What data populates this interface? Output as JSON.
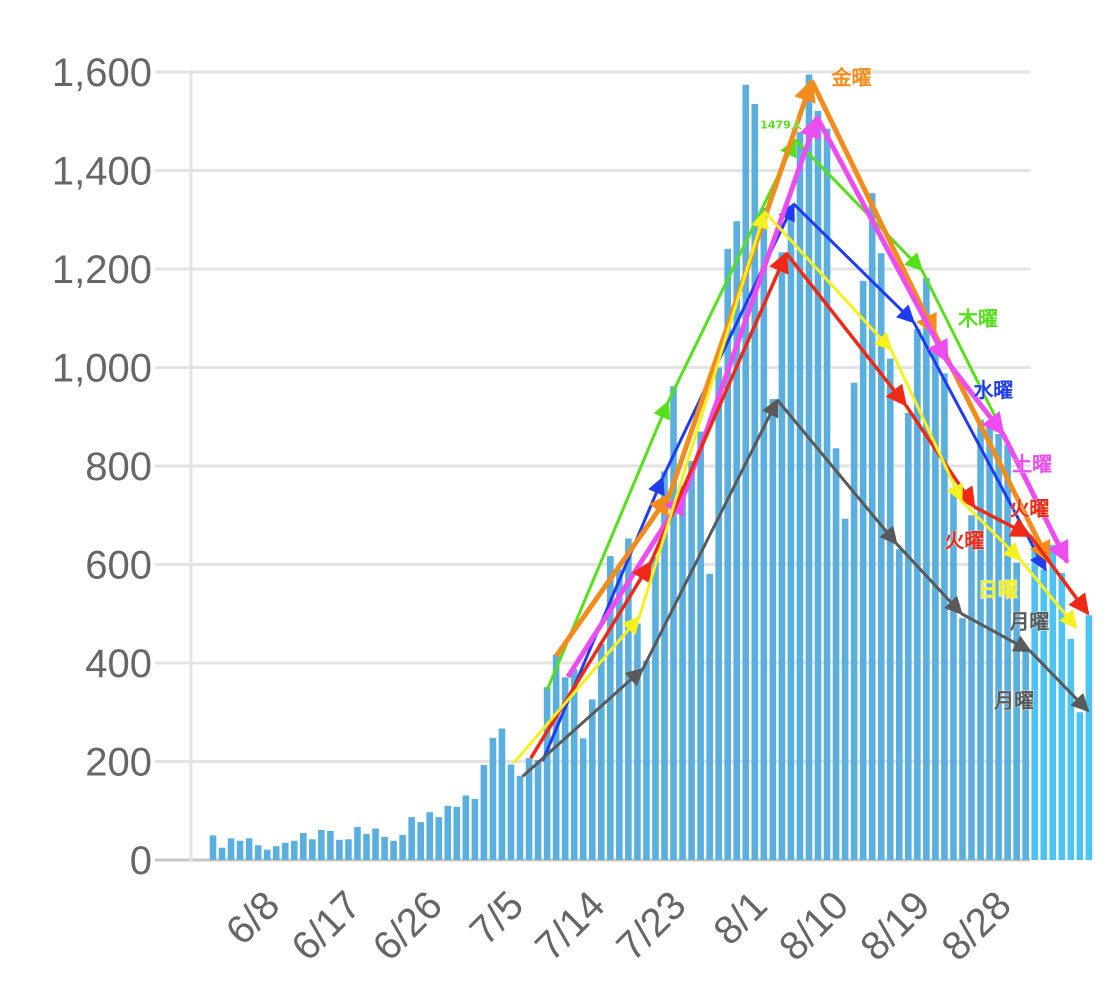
{
  "chart_data": {
    "type": "bar",
    "title": "",
    "xlabel": "",
    "ylabel": "",
    "ylim": [
      0,
      1600
    ],
    "grid": true,
    "start_date": "6/5",
    "y_ticks": [
      "0",
      "200",
      "400",
      "600",
      "800",
      "1,000",
      "1,200",
      "1,400",
      "1,600"
    ],
    "y_tick_values": [
      0,
      200,
      400,
      600,
      800,
      1000,
      1200,
      1400,
      1600
    ],
    "x_ticks": [
      {
        "day": 3,
        "label": "6/8"
      },
      {
        "day": 12,
        "label": "6/17"
      },
      {
        "day": 21,
        "label": "6/26"
      },
      {
        "day": 30,
        "label": "7/5"
      },
      {
        "day": 39,
        "label": "7/14"
      },
      {
        "day": 48,
        "label": "7/23"
      },
      {
        "day": 57,
        "label": "8/1"
      },
      {
        "day": 66,
        "label": "8/10"
      },
      {
        "day": 75,
        "label": "8/19"
      },
      {
        "day": 84,
        "label": "8/28"
      }
    ],
    "values": [
      50,
      25,
      44,
      39,
      44,
      30,
      21,
      28,
      35,
      39,
      55,
      42,
      61,
      59,
      41,
      42,
      67,
      53,
      64,
      47,
      39,
      51,
      87,
      77,
      97,
      87,
      110,
      108,
      131,
      124,
      193,
      248,
      267,
      194,
      171,
      207,
      203,
      351,
      417,
      371,
      388,
      247,
      326,
      439,
      617,
      590,
      653,
      480,
      405,
      615,
      789,
      962,
      760,
      810,
      870,
      581,
      1000,
      1241,
      1297,
      1574,
      1535,
      1324,
      936,
      1234,
      1329,
      1478,
      1595,
      1521,
      1485,
      836,
      693,
      969,
      1176,
      1354,
      1232,
      1018,
      631,
      908,
      1078,
      1182,
      1035,
      988,
      756,
      491,
      700,
      894,
      879,
      865,
      843,
      604,
      427,
      640,
      590,
      640,
      583,
      449,
      300,
      497
    ],
    "bar_color": "#5aafdf",
    "bar_color_recent": "#4cc3f2",
    "recent_from_day": 91,
    "weekday_trends": [
      {
        "name": "木曜",
        "color": "#55e01a",
        "width": 3,
        "points": [
          [
            37.0,
            345
          ],
          [
            50.4,
            930
          ],
          [
            64.5,
            1462
          ],
          [
            78.5,
            1198
          ],
          [
            92.4,
            688
          ]
        ]
      },
      {
        "name": "水曜",
        "color": "#1f3cf0",
        "width": 3,
        "points": [
          [
            36.5,
            201
          ],
          [
            49.8,
            776
          ],
          [
            64.3,
            1332
          ],
          [
            77.6,
            1092
          ],
          [
            92.2,
            589
          ]
        ]
      },
      {
        "name": "金曜",
        "color": "#f28c1c",
        "width": 5,
        "points": [
          [
            38.0,
            414
          ],
          [
            50.6,
            743
          ],
          [
            66.3,
            1582
          ],
          [
            80.0,
            1066
          ],
          [
            92.6,
            605
          ]
        ]
      },
      {
        "name": "土曜",
        "color": "#ec4cf0",
        "width": 5,
        "points": [
          [
            39.3,
            372
          ],
          [
            52.2,
            743
          ],
          [
            66.9,
            1508
          ],
          [
            81.3,
            1013
          ],
          [
            87.5,
            865
          ],
          [
            94.6,
            605
          ]
        ]
      },
      {
        "name": "火曜",
        "color": "#ee2a16",
        "width": 3.5,
        "points": [
          [
            35.2,
            207
          ],
          [
            48.5,
            605
          ],
          [
            63.5,
            1232
          ],
          [
            76.7,
            924
          ],
          [
            84.3,
            717
          ],
          [
            90.5,
            658
          ],
          [
            96.9,
            500
          ]
        ]
      },
      {
        "name": "日曜",
        "color": "#f5f01e",
        "width": 3,
        "points": [
          [
            33.3,
            197
          ],
          [
            47.2,
            493
          ],
          [
            61.1,
            1316
          ],
          [
            75.1,
            1036
          ],
          [
            82.9,
            729
          ],
          [
            89.4,
            610
          ],
          [
            95.6,
            472
          ]
        ]
      },
      {
        "name": "月曜",
        "color": "#5a5a5a",
        "width": 3,
        "points": [
          [
            34.3,
            170
          ],
          [
            47.6,
            388
          ],
          [
            62.5,
            934
          ],
          [
            75.7,
            642
          ],
          [
            82.9,
            500
          ],
          [
            90.5,
            424
          ],
          [
            96.9,
            303
          ]
        ]
      }
    ],
    "annotations": [
      {
        "text": "金曜",
        "color": "#f28c1c",
        "day": 68.5,
        "value": 1575,
        "size": "normal"
      },
      {
        "text": "1479人",
        "color": "#55e01a",
        "day": 60.6,
        "value": 1485,
        "size": "small"
      },
      {
        "text": "木曜",
        "color": "#55e01a",
        "day": 82.5,
        "value": 1085,
        "size": "normal"
      },
      {
        "text": "水曜",
        "color": "#1f3cf0",
        "day": 84.2,
        "value": 940,
        "size": "normal"
      },
      {
        "text": "土曜",
        "color": "#ec4cf0",
        "day": 88.5,
        "value": 790,
        "size": "normal"
      },
      {
        "text": "火曜",
        "color": "#ee2a16",
        "day": 88.2,
        "value": 700,
        "size": "normal"
      },
      {
        "text": "火曜",
        "color": "#ee2a16",
        "day": 81.0,
        "value": 635,
        "size": "normal"
      },
      {
        "text": "日曜",
        "color": "#f5f01e",
        "day": 84.7,
        "value": 535,
        "size": "normal"
      },
      {
        "text": "月曜",
        "color": "#5a5a5a",
        "day": 88.2,
        "value": 470,
        "size": "normal"
      },
      {
        "text": "月曜",
        "color": "#5a5a5a",
        "day": 86.5,
        "value": 310,
        "size": "normal"
      }
    ]
  }
}
